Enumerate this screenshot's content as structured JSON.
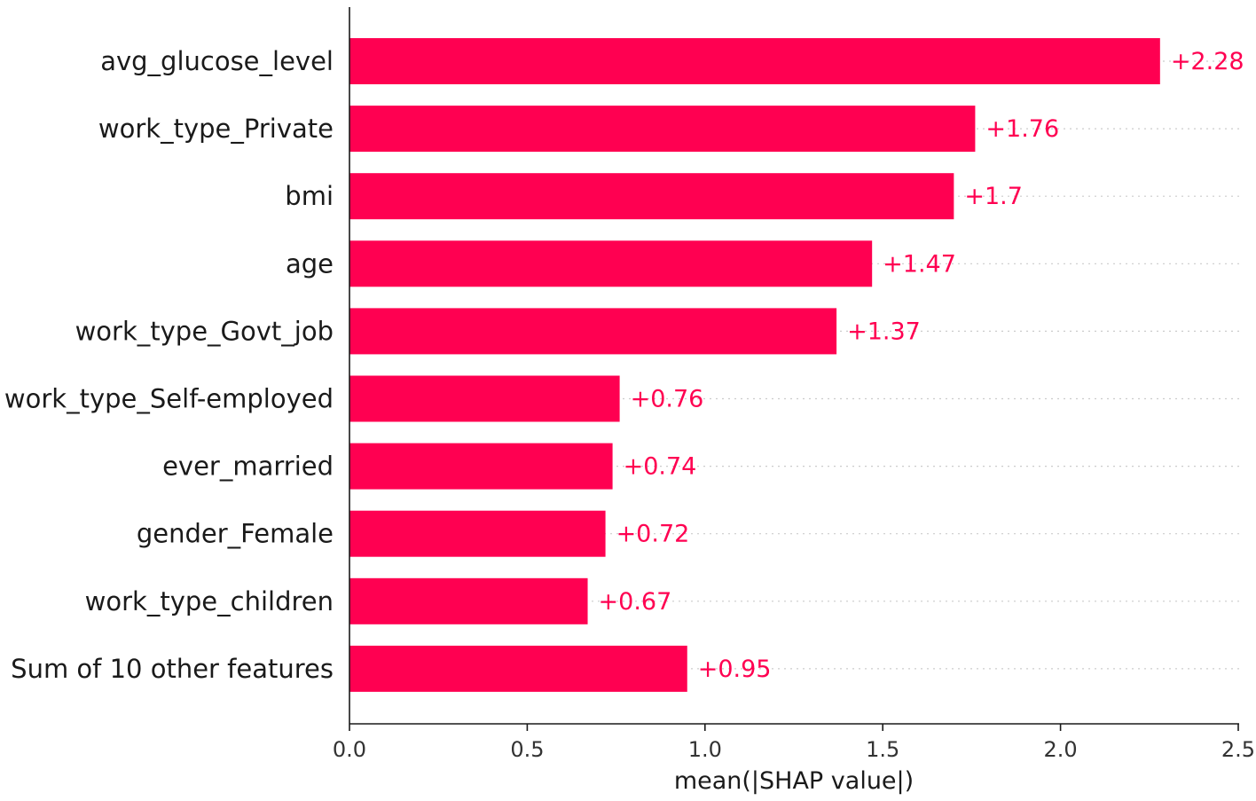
{
  "chart_data": {
    "type": "bar",
    "orientation": "horizontal",
    "title": "",
    "xlabel": "mean(|SHAP value|)",
    "ylabel": "",
    "xlim": [
      0,
      2.5
    ],
    "xticks": [
      0.0,
      0.5,
      1.0,
      1.5,
      2.0,
      2.5
    ],
    "xtick_labels": [
      "0.0",
      "0.5",
      "1.0",
      "1.5",
      "2.0",
      "2.5"
    ],
    "grid": "dotted horizontal row guides",
    "bar_color": "#ff0051",
    "categories": [
      "avg_glucose_level",
      "work_type_Private",
      "bmi",
      "age",
      "work_type_Govt_job",
      "work_type_Self-employed",
      "ever_married",
      "gender_Female",
      "work_type_children",
      "Sum of 10 other features"
    ],
    "values": [
      2.28,
      1.76,
      1.7,
      1.47,
      1.37,
      0.76,
      0.74,
      0.72,
      0.67,
      0.95
    ],
    "value_labels": [
      "+2.28",
      "+1.76",
      "+1.7",
      "+1.47",
      "+1.37",
      "+0.76",
      "+0.74",
      "+0.72",
      "+0.67",
      "+0.95"
    ]
  }
}
